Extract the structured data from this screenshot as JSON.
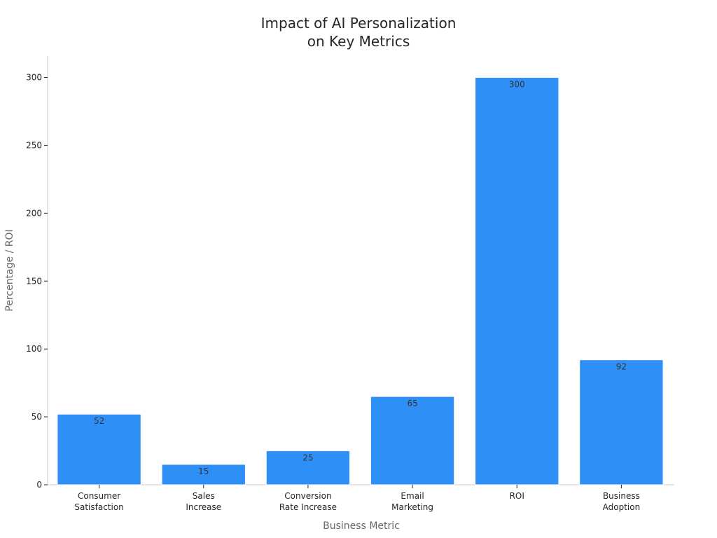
{
  "chart_data": {
    "type": "bar",
    "title": [
      "Impact of AI Personalization",
      "on Key Metrics"
    ],
    "xlabel": "Business Metric",
    "ylabel": "Percentage / ROI",
    "categories": [
      [
        "Consumer",
        "Satisfaction"
      ],
      [
        "Sales",
        "Increase"
      ],
      [
        "Conversion",
        "Rate Increase"
      ],
      [
        "Email",
        "Marketing"
      ],
      [
        "ROI"
      ],
      [
        "Business",
        "Adoption"
      ]
    ],
    "values": [
      52,
      15,
      25,
      65,
      300,
      92
    ],
    "ylim": [
      0,
      315
    ],
    "yticks": [
      0,
      50,
      100,
      150,
      200,
      250,
      300
    ],
    "grid": false,
    "colors": {
      "bar": "#2e8ff7",
      "bar_edge": "#ffffff",
      "axis": "#cccccc",
      "tick": "#262626",
      "title": "#262626",
      "label": "#666666",
      "data_label": "#333333"
    }
  }
}
